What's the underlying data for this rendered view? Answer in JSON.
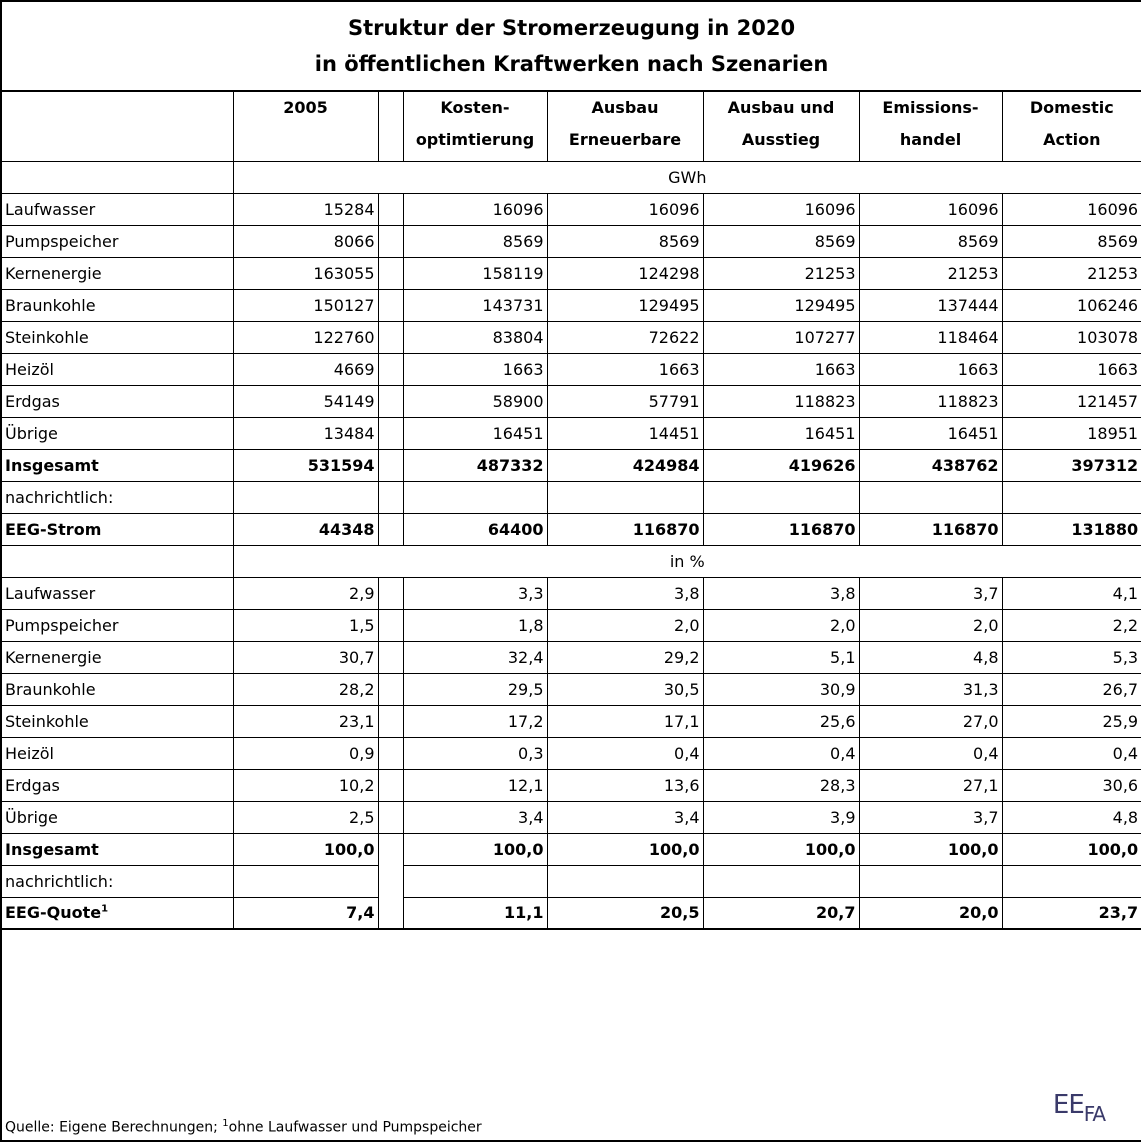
{
  "title": [
    "Struktur der Stromerzeugung in 2020",
    "in öffentlichen Kraftwerken nach Szenarien"
  ],
  "columns": [
    [
      "2005"
    ],
    [
      "Kosten-",
      "optimtierung"
    ],
    [
      "Ausbau",
      "Erneuerbare"
    ],
    [
      "Ausbau und",
      "Ausstieg"
    ],
    [
      "Emissions-",
      "handel"
    ],
    [
      "Domestic",
      "Action"
    ]
  ],
  "sections": [
    {
      "unit": "GWh",
      "rows": [
        {
          "label": "Laufwasser",
          "values": [
            "15284",
            "16096",
            "16096",
            "16096",
            "16096",
            "16096"
          ]
        },
        {
          "label": "Pumpspeicher",
          "values": [
            "8066",
            "8569",
            "8569",
            "8569",
            "8569",
            "8569"
          ]
        },
        {
          "label": "Kernenergie",
          "values": [
            "163055",
            "158119",
            "124298",
            "21253",
            "21253",
            "21253"
          ]
        },
        {
          "label": "Braunkohle",
          "values": [
            "150127",
            "143731",
            "129495",
            "129495",
            "137444",
            "106246"
          ]
        },
        {
          "label": "Steinkohle",
          "values": [
            "122760",
            "83804",
            "72622",
            "107277",
            "118464",
            "103078"
          ]
        },
        {
          "label": "Heizöl",
          "values": [
            "4669",
            "1663",
            "1663",
            "1663",
            "1663",
            "1663"
          ]
        },
        {
          "label": "Erdgas",
          "values": [
            "54149",
            "58900",
            "57791",
            "118823",
            "118823",
            "121457"
          ]
        },
        {
          "label": "Übrige",
          "values": [
            "13484",
            "16451",
            "14451",
            "16451",
            "16451",
            "18951"
          ]
        }
      ],
      "total": {
        "label": "Insgesamt",
        "values": [
          "531594",
          "487332",
          "424984",
          "419626",
          "438762",
          "397312"
        ]
      },
      "note": "nachrichtlich:",
      "memo": {
        "label": "EEG-Strom",
        "values": [
          "44348",
          "64400",
          "116870",
          "116870",
          "116870",
          "131880"
        ]
      }
    },
    {
      "unit": "in %",
      "rows": [
        {
          "label": "Laufwasser",
          "values": [
            "2,9",
            "3,3",
            "3,8",
            "3,8",
            "3,7",
            "4,1"
          ]
        },
        {
          "label": "Pumpspeicher",
          "values": [
            "1,5",
            "1,8",
            "2,0",
            "2,0",
            "2,0",
            "2,2"
          ]
        },
        {
          "label": "Kernenergie",
          "values": [
            "30,7",
            "32,4",
            "29,2",
            "5,1",
            "4,8",
            "5,3"
          ]
        },
        {
          "label": "Braunkohle",
          "values": [
            "28,2",
            "29,5",
            "30,5",
            "30,9",
            "31,3",
            "26,7"
          ]
        },
        {
          "label": "Steinkohle",
          "values": [
            "23,1",
            "17,2",
            "17,1",
            "25,6",
            "27,0",
            "25,9"
          ]
        },
        {
          "label": "Heizöl",
          "values": [
            "0,9",
            "0,3",
            "0,4",
            "0,4",
            "0,4",
            "0,4"
          ]
        },
        {
          "label": "Erdgas",
          "values": [
            "10,2",
            "12,1",
            "13,6",
            "28,3",
            "27,1",
            "30,6"
          ]
        },
        {
          "label": "Übrige",
          "values": [
            "2,5",
            "3,4",
            "3,4",
            "3,9",
            "3,7",
            "4,8"
          ]
        }
      ],
      "total": {
        "label": "Insgesamt",
        "values": [
          "100,0",
          "100,0",
          "100,0",
          "100,0",
          "100,0",
          "100,0"
        ]
      },
      "note": "nachrichtlich:",
      "memo": {
        "label": "EEG-Quote",
        "sup": "1",
        "values": [
          "7,4",
          "11,1",
          "20,5",
          "20,7",
          "20,0",
          "23,7"
        ]
      }
    }
  ],
  "footer": {
    "text": "Quelle: Eigene Berechnungen; ",
    "sup": "1",
    "note": "ohne Laufwasser und Pumpspeicher"
  },
  "logo": [
    "EE",
    "FA"
  ]
}
